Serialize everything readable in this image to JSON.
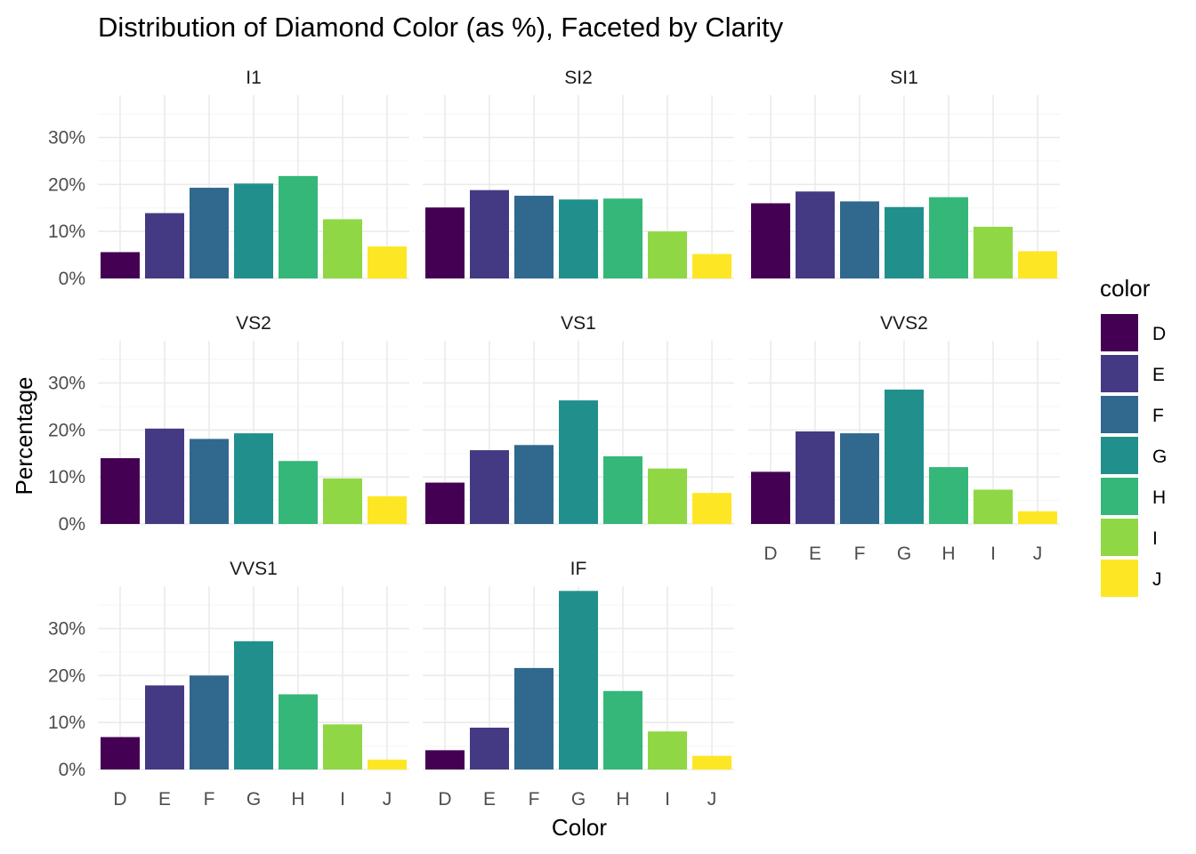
{
  "chart_data": {
    "type": "bar",
    "title": "Distribution of Diamond Color (as %), Faceted by Clarity",
    "xlabel": "Color",
    "ylabel": "Percentage",
    "categories": [
      "D",
      "E",
      "F",
      "G",
      "H",
      "I",
      "J"
    ],
    "y_ticks": [
      0,
      10,
      20,
      30
    ],
    "y_tick_labels": [
      "0%",
      "10%",
      "20%",
      "30%"
    ],
    "ylim": [
      0,
      39
    ],
    "grid": true,
    "facet_columns": 3,
    "legend": {
      "title": "color",
      "placement": "right",
      "entries": [
        "D",
        "E",
        "F",
        "G",
        "H",
        "I",
        "J"
      ]
    },
    "colors": [
      "#440154",
      "#443A83",
      "#31688E",
      "#21908C",
      "#35B779",
      "#8FD744",
      "#FDE725"
    ],
    "facets": [
      {
        "name": "I1",
        "values": [
          5.6,
          13.9,
          19.3,
          20.2,
          21.8,
          12.6,
          6.8
        ]
      },
      {
        "name": "SI2",
        "values": [
          15.1,
          18.8,
          17.6,
          16.8,
          17.0,
          10.0,
          5.2
        ]
      },
      {
        "name": "SI1",
        "values": [
          16.0,
          18.5,
          16.4,
          15.2,
          17.3,
          11.0,
          5.8
        ]
      },
      {
        "name": "VS2",
        "values": [
          14.0,
          20.3,
          18.1,
          19.3,
          13.4,
          9.7,
          5.9
        ]
      },
      {
        "name": "VS1",
        "values": [
          8.8,
          15.7,
          16.8,
          26.3,
          14.4,
          11.8,
          6.6
        ]
      },
      {
        "name": "VVS2",
        "values": [
          11.1,
          19.7,
          19.3,
          28.6,
          12.1,
          7.3,
          2.7
        ]
      },
      {
        "name": "VVS1",
        "values": [
          6.9,
          17.9,
          20.0,
          27.3,
          16.0,
          9.6,
          2.1
        ]
      },
      {
        "name": "IF",
        "values": [
          4.1,
          8.9,
          21.6,
          38.0,
          16.7,
          8.1,
          2.9
        ]
      }
    ]
  }
}
